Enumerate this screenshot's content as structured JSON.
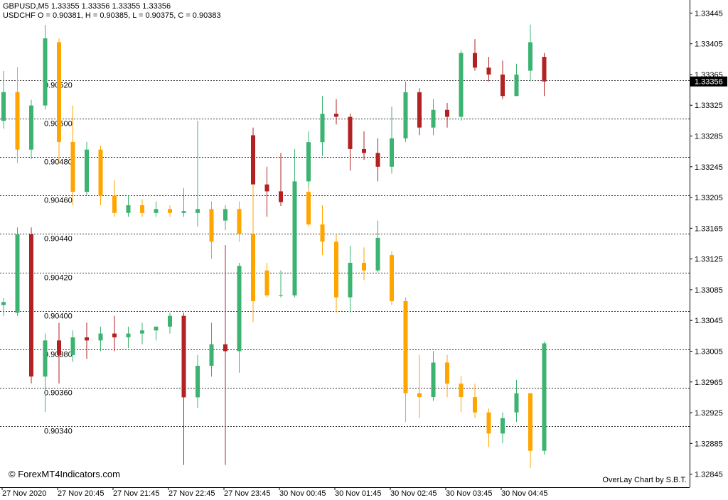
{
  "header": {
    "line1": "GBPUSD,M5  1.33355 1.33356 1.33355 1.33356",
    "line2": "USDCHF O = 0.90381, H = 0.90385, L = 0.90375, C = 0.90383"
  },
  "footer": {
    "left": "© ForexMT4Indicators.com",
    "right": "OverLay Chart by S.B.T."
  },
  "chart_data": {
    "type": "candlestick",
    "categories": [
      "27 Nov 2020",
      null,
      null,
      null,
      "27 Nov 20:45",
      null,
      null,
      null,
      "27 Nov 21:45",
      null,
      null,
      null,
      "27 Nov 22:45",
      null,
      null,
      null,
      "27 Nov 23:45",
      null,
      null,
      null,
      "30 Nov 00:45",
      null,
      null,
      null,
      "30 Nov 01:45",
      null,
      null,
      null,
      "30 Nov 02:45",
      null,
      null,
      null,
      "30 Nov 03:45",
      null,
      null,
      null,
      "30 Nov 04:45",
      null,
      null,
      null
    ],
    "ylim": [
      1.32828,
      1.33462
    ],
    "yticks": [
      1.33445,
      1.33405,
      1.33365,
      1.33325,
      1.33285,
      1.33245,
      1.33205,
      1.33165,
      1.33125,
      1.33085,
      1.33045,
      1.33005,
      1.32965,
      1.32925,
      1.32885,
      1.32845
    ],
    "y2lim": [
      0.90308,
      0.90562
    ],
    "y2ticks": [
      0.9052,
      0.905,
      0.9048,
      0.9046,
      0.9044,
      0.9042,
      0.904,
      0.9038,
      0.9036,
      0.9034
    ],
    "y2tick_labels": [
      "0.90520",
      "0.90500",
      "0.90480",
      "0.90460",
      "0.90440",
      "0.90420",
      "0.90400",
      "0.90380",
      "0.90360",
      "0.90340"
    ],
    "last_price": 1.33356,
    "series": [
      {
        "up_color": "#3cb371",
        "down_color": "#b22222",
        "open": [
          1.33065,
          1.33055,
          1.33157,
          1.32972,
          1.33019,
          1.33,
          1.33023,
          1.33019,
          1.33028,
          1.33023,
          1.33028,
          1.33032,
          1.33037,
          1.33051,
          1.32945,
          1.32986,
          1.33014,
          1.33005,
          1.33286,
          1.33222,
          1.33213,
          1.33199,
          1.33226,
          1.33277,
          1.33314,
          1.3331,
          1.33268,
          1.33263,
          1.33245,
          1.33282,
          1.33342,
          1.33296,
          1.33319,
          1.3331,
          1.33393,
          1.33374,
          1.33365,
          1.33337,
          1.3337,
          1.33388
        ],
        "high": [
          1.33074,
          1.33166,
          1.33166,
          1.33028,
          1.33042,
          1.33032,
          1.33042,
          1.33037,
          1.33051,
          1.33037,
          1.33042,
          1.33037,
          1.33055,
          1.33055,
          1.33,
          1.33042,
          1.33143,
          1.3312,
          1.33296,
          1.33245,
          1.33263,
          1.33268,
          1.33291,
          1.33337,
          1.33333,
          1.33314,
          1.33291,
          1.33282,
          1.33323,
          1.33356,
          1.33347,
          1.33333,
          1.33328,
          1.33397,
          1.33411,
          1.33388,
          1.33383,
          1.33379,
          1.3343,
          1.33393
        ],
        "low": [
          1.33051,
          1.33051,
          1.32963,
          1.32926,
          1.32963,
          1.32991,
          1.32995,
          1.33005,
          1.33005,
          1.33009,
          1.33014,
          1.33019,
          1.33028,
          1.32857,
          1.32931,
          1.32972,
          1.32857,
          1.32977,
          1.33203,
          1.3318,
          1.33194,
          1.33189,
          1.33217,
          1.33259,
          1.333,
          1.3324,
          1.33254,
          1.33226,
          1.33236,
          1.33277,
          1.33286,
          1.33286,
          1.33296,
          1.33305,
          1.3337,
          1.33356,
          1.33333,
          1.33337,
          1.33356,
          1.33337
        ],
        "close": [
          1.33069,
          1.33157,
          1.32972,
          1.33019,
          1.33,
          1.33023,
          1.33019,
          1.33028,
          1.33023,
          1.33028,
          1.33032,
          1.33037,
          1.33051,
          1.32945,
          1.32986,
          1.33014,
          1.33005,
          1.33116,
          1.33222,
          1.33213,
          1.33199,
          1.33226,
          1.33277,
          1.33314,
          1.3331,
          1.33268,
          1.33263,
          1.33245,
          1.33282,
          1.33342,
          1.33296,
          1.33319,
          1.3331,
          1.33393,
          1.33374,
          1.33365,
          1.33337,
          1.33365,
          1.33407,
          1.33356
        ]
      },
      {
        "axis": "y2",
        "up_color": "#3cb371",
        "down_color": "#ffa500",
        "open": [
          0.90499,
          0.90514,
          0.90484,
          0.90507,
          0.9054,
          0.90488,
          0.90462,
          0.90484,
          0.9046,
          0.90451,
          0.90455,
          0.90451,
          0.90453,
          0.90451,
          0.90451,
          0.90453,
          0.90447,
          0.90453,
          0.9044,
          0.90421,
          0.90408,
          0.90408,
          0.90462,
          0.90445,
          0.90436,
          0.90407,
          0.90425,
          0.90421,
          0.90429,
          0.90405,
          0.90357,
          0.90355,
          0.90373,
          0.90362,
          0.90355,
          0.90347,
          0.90336,
          0.90347,
          0.90357,
          0.90327
        ],
        "high": [
          0.90525,
          0.90527,
          0.9051,
          0.90549,
          0.90542,
          0.90507,
          0.90488,
          0.90486,
          0.90468,
          0.9046,
          0.90458,
          0.90457,
          0.90455,
          0.90464,
          0.90499,
          0.90457,
          0.90455,
          0.90457,
          0.90466,
          0.90425,
          0.90421,
          0.90468,
          0.90464,
          0.90455,
          0.9044,
          0.90434,
          0.90433,
          0.90447,
          0.90431,
          0.90407,
          0.90377,
          0.90379,
          0.90377,
          0.90366,
          0.90362,
          0.90349,
          0.90347,
          0.90364,
          0.90357,
          0.90384
        ],
        "low": [
          0.90495,
          0.90477,
          0.90479,
          0.90505,
          0.90477,
          0.90455,
          0.9046,
          0.90455,
          0.90449,
          0.90449,
          0.90449,
          0.90449,
          0.90449,
          0.90449,
          0.90444,
          0.90427,
          0.90442,
          0.90436,
          0.90394,
          0.90407,
          0.90407,
          0.90407,
          0.90444,
          0.90429,
          0.90399,
          0.90399,
          0.90416,
          0.9042,
          0.90403,
          0.90342,
          0.90344,
          0.90353,
          0.90355,
          0.90347,
          0.90344,
          0.90329,
          0.90331,
          0.90342,
          0.90318,
          0.90325
        ],
        "close": [
          0.90514,
          0.90484,
          0.90507,
          0.90542,
          0.90488,
          0.90462,
          0.90484,
          0.9046,
          0.90451,
          0.90455,
          0.90451,
          0.90453,
          0.90451,
          0.90452,
          0.90453,
          0.90436,
          0.90453,
          0.9044,
          0.90405,
          0.90408,
          0.90408,
          0.90462,
          0.90445,
          0.90436,
          0.90407,
          0.90425,
          0.90421,
          0.90438,
          0.90405,
          0.90357,
          0.90355,
          0.90373,
          0.90362,
          0.90355,
          0.90347,
          0.90336,
          0.90344,
          0.90357,
          0.90327,
          0.90383
        ]
      }
    ]
  }
}
